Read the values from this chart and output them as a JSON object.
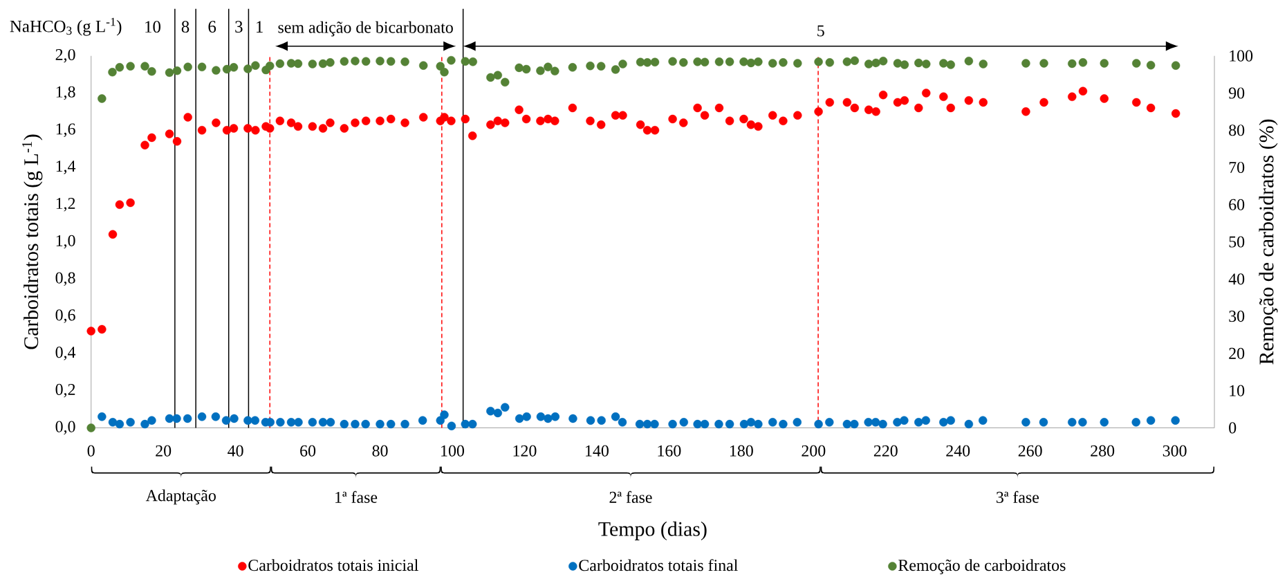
{
  "chart_data": {
    "type": "scatter",
    "xlabel": "Tempo (dias)",
    "ylabel": "Carboidratos totais (g L$^{-1}$)",
    "y2label": "Remoção de carboidratos  (%)",
    "annotations": [
      "NaHCO$_{3}$ (g L$^{-1}$)",
      "10",
      "8",
      "6",
      "3",
      "1",
      "sem adição de bicarbonato",
      "5",
      "Adaptação",
      "1ª fase",
      "2ª fase",
      "3ª fase"
    ],
    "xlim": [
      0,
      311
    ],
    "xticks": [
      0,
      20,
      40,
      60,
      80,
      100,
      120,
      140,
      160,
      180,
      200,
      220,
      240,
      260,
      280,
      300
    ],
    "ylim": [
      0,
      2
    ],
    "yticks": [
      {
        "value": 0,
        "label": "0,0"
      },
      {
        "value": 0.2,
        "label": "0,2"
      },
      {
        "value": 0.4,
        "label": "0,4"
      },
      {
        "value": 0.6,
        "label": "0,6"
      },
      {
        "value": 0.8,
        "label": "0,8"
      },
      {
        "value": 1.0,
        "label": "1,0"
      },
      {
        "value": 1.2,
        "label": "1,2"
      },
      {
        "value": 1.4,
        "label": "1,4"
      },
      {
        "value": 1.6,
        "label": "1,6"
      },
      {
        "value": 1.8,
        "label": "1,8"
      },
      {
        "value": 2.0,
        "label": "2,0"
      }
    ],
    "y2lim": [
      0,
      100
    ],
    "y2ticks": [
      0,
      10,
      20,
      30,
      40,
      50,
      60,
      70,
      80,
      90,
      100
    ],
    "marker": "circle",
    "legend": "bottom",
    "series": [
      {
        "name": "Carboidratos totais inicial",
        "color": "#ff0000",
        "x": [
          0,
          3,
          6,
          7.9,
          10.9,
          14.9,
          16.8,
          21.7,
          23.8,
          26.8,
          30.7,
          34.6,
          37.6,
          39.5,
          43.4,
          45.5,
          48.4,
          49.5,
          52.3,
          55.4,
          57.3,
          61.3,
          64.2,
          66.2,
          70.1,
          73.1,
          76.1,
          80,
          83,
          86.9,
          92,
          96.7,
          97.8,
          99.7,
          103.6,
          105.6,
          110.6,
          112.6,
          114.6,
          118.5,
          120.5,
          124.4,
          126.5,
          128.4,
          133.3,
          138.2,
          141.2,
          145.2,
          147.2,
          152.1,
          154,
          156.1,
          161,
          164,
          167.9,
          169.9,
          173.9,
          176.8,
          180.7,
          182.7,
          184.7,
          188.7,
          191.6,
          195.6,
          201.4,
          204.5,
          209.3,
          211.4,
          215.3,
          217.3,
          219.3,
          223.3,
          225.2,
          229.1,
          231.2,
          236,
          238,
          243,
          247,
          258.8,
          263.8,
          271.6,
          274.6,
          280.5,
          289.4,
          293.4,
          300.3
        ],
        "values": [
          0.52,
          0.53,
          1.04,
          1.2,
          1.21,
          1.52,
          1.56,
          1.58,
          1.54,
          1.67,
          1.6,
          1.64,
          1.6,
          1.61,
          1.61,
          1.6,
          1.62,
          1.61,
          1.65,
          1.64,
          1.62,
          1.62,
          1.61,
          1.64,
          1.61,
          1.64,
          1.65,
          1.65,
          1.66,
          1.64,
          1.67,
          1.65,
          1.67,
          1.65,
          1.66,
          1.57,
          1.63,
          1.65,
          1.64,
          1.71,
          1.66,
          1.65,
          1.66,
          1.65,
          1.72,
          1.65,
          1.63,
          1.68,
          1.68,
          1.63,
          1.6,
          1.6,
          1.66,
          1.64,
          1.72,
          1.68,
          1.72,
          1.65,
          1.66,
          1.63,
          1.62,
          1.68,
          1.65,
          1.68,
          1.7,
          1.75,
          1.75,
          1.72,
          1.71,
          1.7,
          1.79,
          1.75,
          1.76,
          1.72,
          1.8,
          1.78,
          1.72,
          1.76,
          1.75,
          1.7,
          1.75,
          1.78,
          1.81,
          1.77,
          1.75,
          1.72,
          1.69
        ]
      },
      {
        "name": "Carboidratos totais final",
        "color": "#0070c0",
        "x": [
          3,
          6,
          7.9,
          10.9,
          14.9,
          16.8,
          21.7,
          23.7,
          26.7,
          30.7,
          34.5,
          37.4,
          39.6,
          43.4,
          45.4,
          48.3,
          49.6,
          52.4,
          55.4,
          57.4,
          61.3,
          64.2,
          66.3,
          70.1,
          73.1,
          76,
          80,
          83,
          86.9,
          91.8,
          96.7,
          97.8,
          99.8,
          103.6,
          105.6,
          110.6,
          112.6,
          114.6,
          118.6,
          120.6,
          124.5,
          126.5,
          128.5,
          133.4,
          138.3,
          141.3,
          145.2,
          147.1,
          151.9,
          154,
          156,
          161,
          164.1,
          167.9,
          169.9,
          173.8,
          176.8,
          180.8,
          182.7,
          184.7,
          188.7,
          191.6,
          195.5,
          201.4,
          204.4,
          209.3,
          211.3,
          215.2,
          217.2,
          219.2,
          223.2,
          225.1,
          229.1,
          231.1,
          236,
          238,
          243,
          246.9,
          258.8,
          263.7,
          271.6,
          274.5,
          280.5,
          289.3,
          293.4,
          300.2
        ],
        "values": [
          0.06,
          0.03,
          0.02,
          0.03,
          0.02,
          0.04,
          0.05,
          0.05,
          0.05,
          0.06,
          0.06,
          0.04,
          0.05,
          0.04,
          0.04,
          0.03,
          0.03,
          0.03,
          0.03,
          0.03,
          0.03,
          0.03,
          0.03,
          0.02,
          0.02,
          0.02,
          0.02,
          0.02,
          0.02,
          0.04,
          0.04,
          0.07,
          0.01,
          0.02,
          0.02,
          0.09,
          0.08,
          0.11,
          0.05,
          0.06,
          0.06,
          0.05,
          0.06,
          0.05,
          0.04,
          0.04,
          0.06,
          0.03,
          0.02,
          0.02,
          0.02,
          0.02,
          0.03,
          0.02,
          0.02,
          0.02,
          0.02,
          0.02,
          0.03,
          0.02,
          0.03,
          0.02,
          0.03,
          0.02,
          0.03,
          0.02,
          0.02,
          0.03,
          0.03,
          0.02,
          0.03,
          0.04,
          0.03,
          0.04,
          0.03,
          0.04,
          0.02,
          0.04,
          0.03,
          0.03,
          0.03,
          0.03,
          0.03,
          0.03,
          0.04,
          0.04
        ]
      },
      {
        "name": "Remoção de carboidratos",
        "color": "#548235",
        "axis": "y2",
        "x": [
          0,
          3,
          5.9,
          7.9,
          10.9,
          14.9,
          16.8,
          21.7,
          23.8,
          26.8,
          30.7,
          34.6,
          37.6,
          39.5,
          43.4,
          45.5,
          48.4,
          49.5,
          52.3,
          55.4,
          57.3,
          61.3,
          64.2,
          66.2,
          70.1,
          73.1,
          76.1,
          80,
          83,
          86.9,
          92,
          96.7,
          97.8,
          99.7,
          103.6,
          105.7,
          110.6,
          112.6,
          114.6,
          118.5,
          120.5,
          124.4,
          126.5,
          128.4,
          133.3,
          138.2,
          141.2,
          145.2,
          147.2,
          152.1,
          154,
          156.1,
          161,
          164,
          167.9,
          169.9,
          173.9,
          176.8,
          180.7,
          182.7,
          184.7,
          188.7,
          191.6,
          195.6,
          201.4,
          204.5,
          209.3,
          211.4,
          215.3,
          217.3,
          219.3,
          223.3,
          225.2,
          229.1,
          231.2,
          236,
          238,
          243,
          247,
          258.8,
          263.8,
          271.6,
          274.6,
          280.5,
          289.4,
          293.4,
          300.3
        ],
        "values": [
          0,
          88.5,
          95.6,
          96.9,
          97.2,
          97.2,
          95.8,
          95.5,
          96.0,
          97.0,
          97.0,
          96.1,
          96.4,
          96.9,
          96.5,
          97.4,
          96.2,
          97.3,
          97.9,
          98.0,
          97.9,
          97.8,
          97.9,
          98.2,
          98.5,
          98.6,
          98.5,
          98.6,
          98.5,
          98.4,
          97.4,
          97.2,
          95.6,
          98.8,
          98.5,
          98.4,
          94.2,
          94.8,
          92.9,
          96.8,
          96.4,
          96.0,
          97.0,
          95.9,
          96.9,
          97.3,
          97.2,
          96.3,
          97.8,
          98.3,
          98.2,
          98.3,
          98.5,
          98.2,
          98.4,
          98.3,
          98.4,
          98.4,
          98.4,
          98.1,
          98.4,
          98.0,
          98.2,
          98.0,
          98.4,
          98.2,
          98.4,
          98.7,
          97.8,
          98.1,
          98.6,
          98.0,
          97.6,
          98.1,
          97.8,
          98.0,
          97.6,
          98.6,
          97.8,
          98.0,
          98.0,
          97.9,
          98.2,
          98.0,
          98.0,
          97.5,
          97.4
        ]
      }
    ],
    "ref_lines": [
      {
        "axis": "x",
        "value": 23.2,
        "color": "#000000",
        "line_style": "solid"
      },
      {
        "axis": "x",
        "value": 29,
        "color": "#000000",
        "line_style": "solid"
      },
      {
        "axis": "x",
        "value": 38.1,
        "color": "#000000",
        "line_style": "solid"
      },
      {
        "axis": "x",
        "value": 43.6,
        "color": "#000000",
        "line_style": "solid"
      },
      {
        "axis": "x",
        "value": 103,
        "color": "#000000",
        "line_style": "solid"
      },
      {
        "axis": "x",
        "value": 49.5,
        "color": "#ff0000",
        "line_style": "dashed"
      },
      {
        "axis": "x",
        "value": 97.1,
        "color": "#ff0000",
        "line_style": "dashed"
      },
      {
        "axis": "x",
        "value": 201.3,
        "color": "#ff0000",
        "line_style": "dashed"
      }
    ]
  }
}
